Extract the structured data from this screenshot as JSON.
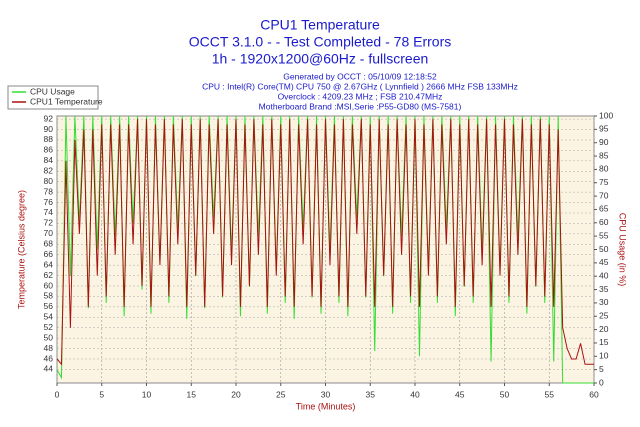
{
  "chart_data": {
    "type": "line",
    "title": [
      "CPU1 Temperature",
      "OCCT 3.1.0 -  - Test Completed - 78 Errors",
      "1h - 1920x1200@60Hz - fullscreen"
    ],
    "subtitle": [
      "Generated by OCCT : 05/10/09 12:18:52",
      "CPU : Intel(R) Core(TM) CPU 750 @ 2.67GHz ( Lynnfield ) 2666 MHz FSB 133MHz",
      "Overclock : 4209.23 MHz ; FSB 210.47MHz",
      "Motherboard Brand :MSI,Serie :P55-GD80 (MS-7581)"
    ],
    "xlabel": "Time (Minutes)",
    "ylabel": "Temperature (Celsius degree)",
    "y2label": "CPU Usage (in %)",
    "x": [
      0,
      0.5,
      1,
      1.5,
      2,
      2.5,
      3,
      3.5,
      4,
      4.5,
      5,
      5.5,
      6,
      6.5,
      7,
      7.5,
      8,
      8.5,
      9,
      9.5,
      10,
      10.5,
      11,
      11.5,
      12,
      12.5,
      13,
      13.5,
      14,
      14.5,
      15,
      15.5,
      16,
      16.5,
      17,
      17.5,
      18,
      18.5,
      19,
      19.5,
      20,
      20.5,
      21,
      21.5,
      22,
      22.5,
      23,
      23.5,
      24,
      24.5,
      25,
      25.5,
      26,
      26.5,
      27,
      27.5,
      28,
      28.5,
      29,
      29.5,
      30,
      30.5,
      31,
      31.5,
      32,
      32.5,
      33,
      33.5,
      34,
      34.5,
      35,
      35.5,
      36,
      36.5,
      37,
      37.5,
      38,
      38.5,
      39,
      39.5,
      40,
      40.5,
      41,
      41.5,
      42,
      42.5,
      43,
      43.5,
      44,
      44.5,
      45,
      45.5,
      46,
      46.5,
      47,
      47.5,
      48,
      48.5,
      49,
      49.5,
      50,
      50.5,
      51,
      51.5,
      52,
      52.5,
      53,
      53.5,
      54,
      54.5,
      55,
      55.5,
      56,
      56.5,
      57,
      57.5,
      58,
      58.5,
      59,
      59.5,
      60
    ],
    "series": [
      {
        "name": "CPU Usage",
        "color": "#33dd33",
        "axis": "y2",
        "values": [
          5,
          2,
          100,
          40,
          100,
          60,
          100,
          28,
          100,
          50,
          100,
          30,
          100,
          55,
          100,
          25,
          100,
          60,
          100,
          35,
          100,
          26,
          100,
          45,
          100,
          30,
          100,
          58,
          100,
          24,
          100,
          40,
          100,
          28,
          100,
          62,
          100,
          32,
          100,
          48,
          100,
          25,
          100,
          36,
          100,
          55,
          100,
          26,
          100,
          42,
          100,
          30,
          100,
          24,
          100,
          58,
          100,
          32,
          100,
          26,
          100,
          50,
          100,
          30,
          100,
          25,
          100,
          62,
          100,
          32,
          100,
          12,
          100,
          40,
          100,
          26,
          100,
          55,
          100,
          30,
          100,
          10,
          100,
          42,
          100,
          30,
          100,
          58,
          100,
          25,
          100,
          36,
          100,
          30,
          100,
          50,
          100,
          8,
          100,
          42,
          100,
          30,
          100,
          55,
          100,
          26,
          100,
          36,
          100,
          30,
          100,
          8,
          100,
          0,
          0,
          0,
          0,
          0,
          0,
          0,
          0
        ]
      },
      {
        "name": "CPU1 Temperature",
        "color": "#aa1111",
        "values": [
          46,
          45,
          84,
          52,
          88,
          70,
          90,
          56,
          90,
          62,
          91,
          58,
          91,
          66,
          91,
          56,
          91,
          68,
          92,
          60,
          92,
          56,
          91,
          64,
          92,
          58,
          91,
          68,
          92,
          56,
          91,
          62,
          92,
          56,
          91,
          70,
          92,
          58,
          91,
          64,
          92,
          56,
          91,
          60,
          92,
          66,
          91,
          56,
          92,
          62,
          91,
          58,
          92,
          56,
          91,
          68,
          92,
          58,
          91,
          56,
          92,
          64,
          91,
          58,
          92,
          56,
          91,
          70,
          92,
          58,
          91,
          56,
          92,
          62,
          91,
          56,
          92,
          66,
          91,
          58,
          92,
          56,
          91,
          62,
          92,
          58,
          91,
          68,
          92,
          56,
          91,
          60,
          92,
          58,
          91,
          64,
          92,
          56,
          91,
          62,
          92,
          58,
          91,
          66,
          92,
          56,
          91,
          60,
          92,
          58,
          91,
          56,
          90,
          52,
          48,
          46,
          46,
          49,
          45,
          45,
          45
        ]
      }
    ],
    "xlim": [
      0,
      60
    ],
    "xticks": [
      0,
      5,
      10,
      15,
      20,
      25,
      30,
      35,
      40,
      45,
      50,
      55,
      60
    ],
    "ylim": [
      41.4,
      92.6
    ],
    "yticks": [
      44,
      46,
      48,
      50,
      52,
      54,
      56,
      58,
      60,
      62,
      64,
      66,
      68,
      70,
      72,
      74,
      76,
      78,
      80,
      82,
      84,
      86,
      88,
      90,
      92
    ],
    "y2lim": [
      0,
      100
    ],
    "y2ticks": [
      0,
      5,
      10,
      15,
      20,
      25,
      30,
      35,
      40,
      45,
      50,
      55,
      60,
      65,
      70,
      75,
      80,
      85,
      90,
      95,
      100
    ],
    "grid": true
  }
}
